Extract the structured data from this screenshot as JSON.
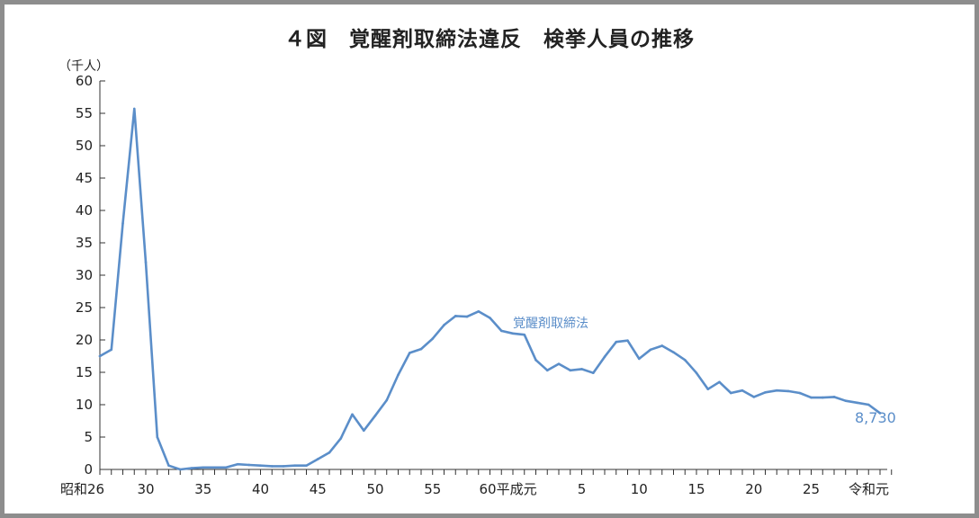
{
  "chart_data": {
    "type": "line",
    "title": "４図　覚醒剤取締法違反　検挙人員の推移",
    "ylabel": "（千人）",
    "xlabel": "",
    "ylim": [
      0,
      60
    ],
    "yticks": [
      0,
      5,
      10,
      15,
      20,
      25,
      30,
      35,
      40,
      45,
      50,
      55,
      60
    ],
    "x_tick_labels": [
      "昭和26",
      "30",
      "35",
      "40",
      "45",
      "50",
      "55",
      "60平成元",
      "5",
      "10",
      "15",
      "20",
      "25",
      "令和元"
    ],
    "grid": false,
    "accent_color": "#5b8ec9",
    "series": [
      {
        "name": "覚醒剤取締法",
        "x": [
          "昭和26",
          "昭和27",
          "昭和28",
          "昭和29",
          "昭和30",
          "昭和31",
          "昭和32",
          "昭和33",
          "昭和34",
          "昭和35",
          "昭和36",
          "昭和37",
          "昭和38",
          "昭和39",
          "昭和40",
          "昭和41",
          "昭和42",
          "昭和43",
          "昭和44",
          "昭和45",
          "昭和46",
          "昭和47",
          "昭和48",
          "昭和49",
          "昭和50",
          "昭和51",
          "昭和52",
          "昭和53",
          "昭和54",
          "昭和55",
          "昭和56",
          "昭和57",
          "昭和58",
          "昭和59",
          "昭和60",
          "昭和61",
          "昭和62",
          "昭和63",
          "平成元",
          "平成2",
          "平成3",
          "平成4",
          "平成5",
          "平成6",
          "平成7",
          "平成8",
          "平成9",
          "平成10",
          "平成11",
          "平成12",
          "平成13",
          "平成14",
          "平成15",
          "平成16",
          "平成17",
          "平成18",
          "平成19",
          "平成20",
          "平成21",
          "平成22",
          "平成23",
          "平成24",
          "平成25",
          "平成26",
          "平成27",
          "平成28",
          "平成29",
          "平成30",
          "令和元"
        ],
        "values": [
          17.5,
          18.5,
          38.0,
          55.7,
          32.0,
          5.0,
          0.6,
          0.0,
          0.2,
          0.3,
          0.3,
          0.3,
          0.8,
          0.7,
          0.6,
          0.5,
          0.5,
          0.6,
          0.6,
          1.6,
          2.6,
          4.8,
          8.5,
          6.0,
          8.3,
          10.7,
          14.6,
          18.0,
          18.6,
          20.2,
          22.3,
          23.7,
          23.6,
          24.4,
          23.4,
          21.4,
          21.0,
          20.8,
          16.9,
          15.3,
          16.3,
          15.3,
          15.5,
          14.9,
          17.4,
          19.7,
          19.9,
          17.1,
          18.5,
          19.1,
          18.1,
          16.9,
          14.9,
          12.4,
          13.5,
          11.8,
          12.2,
          11.2,
          11.9,
          12.2,
          12.1,
          11.8,
          11.1,
          11.1,
          11.2,
          10.6,
          10.3,
          10.0,
          8.7
        ]
      }
    ],
    "series_label": "覚醒剤取締法",
    "end_value_label": "8,730"
  }
}
